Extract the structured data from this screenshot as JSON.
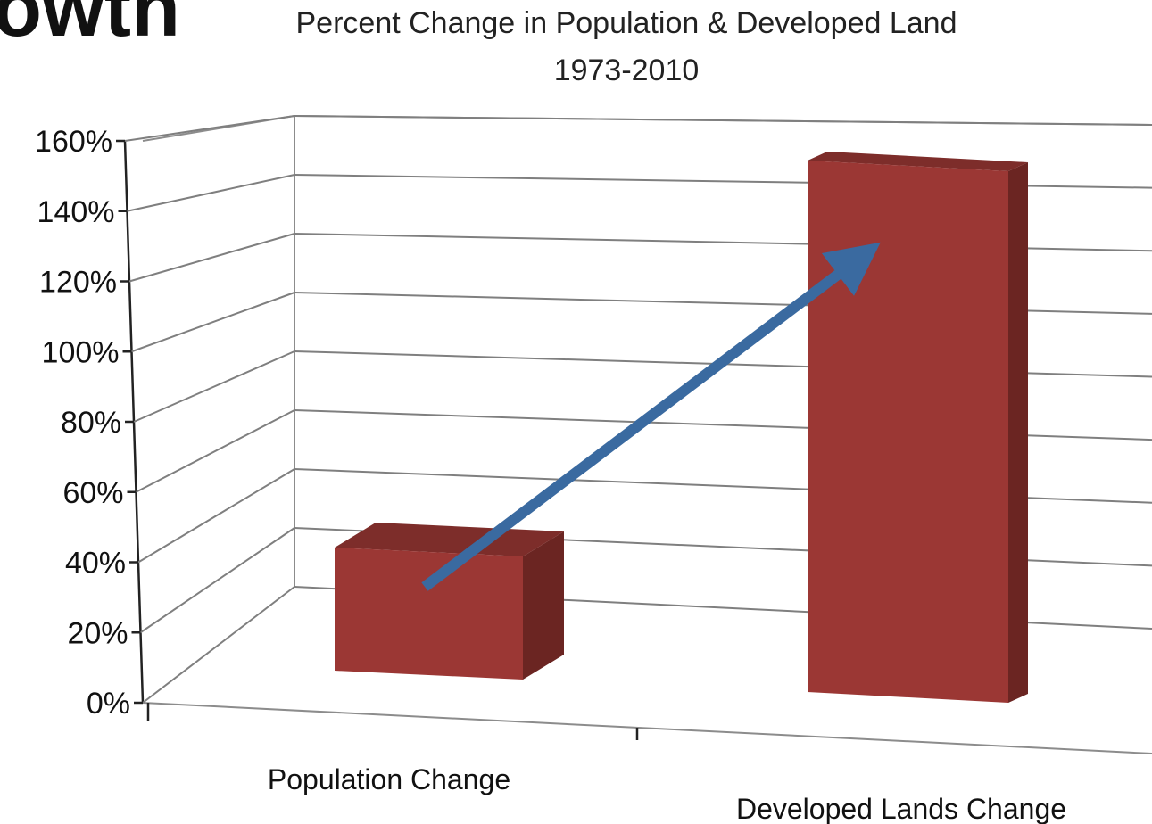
{
  "heading_fragment": "owth",
  "chart_data": {
    "type": "bar",
    "title": "Percent Change in Population & Developed Land",
    "subtitle": "1973-2010",
    "categories": [
      "Population Change",
      "Developed Lands Change"
    ],
    "values": [
      35,
      154
    ],
    "value_format": "percent",
    "ylim": [
      0,
      160
    ],
    "yticks": [
      "0%",
      "20%",
      "40%",
      "60%",
      "80%",
      "100%",
      "120%",
      "140%",
      "160%"
    ],
    "grid": true,
    "legend": "none",
    "bar_color": "#9b3734",
    "annotation": {
      "type": "arrow",
      "from": "Population Change",
      "to": "Developed Lands Change",
      "color": "#3a6aa0"
    }
  }
}
